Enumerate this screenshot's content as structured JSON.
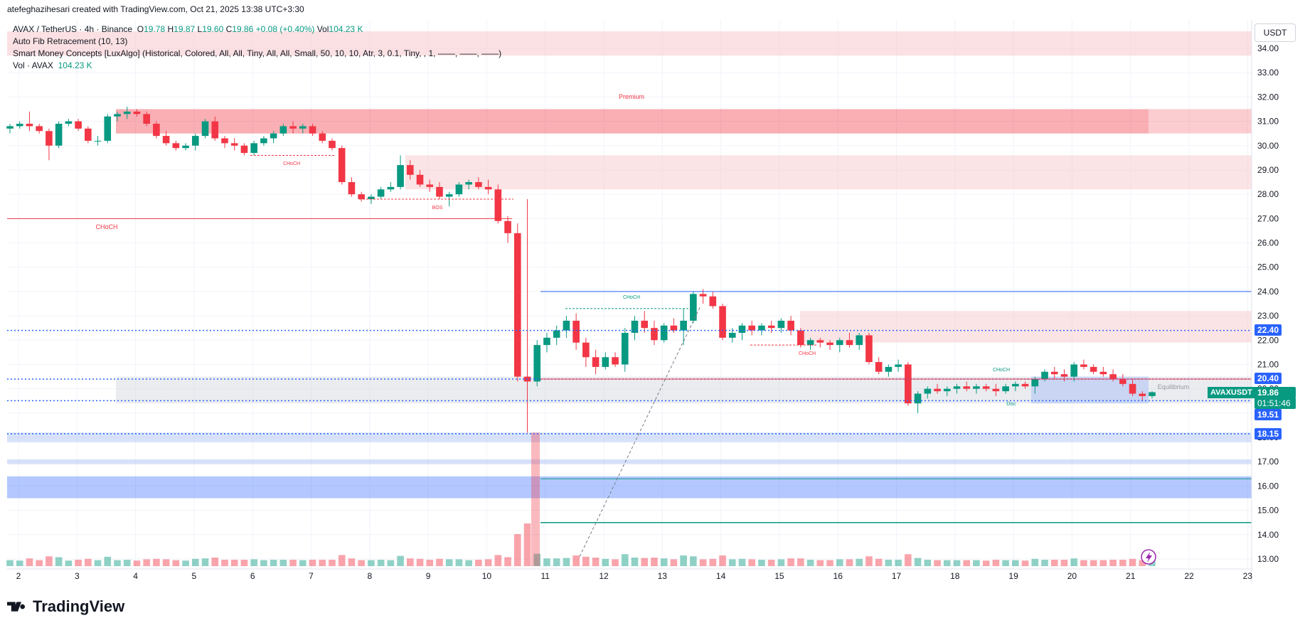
{
  "header": {
    "created_text": "atefeghazihesari created with TradingView.com, Oct 21, 2025 13:38 UTC+3:30"
  },
  "legend": {
    "symbol": "AVAX / TetherUS · 4h · Binance",
    "o_label": "O",
    "o_val": "19.78",
    "h_label": "H",
    "h_val": "19.87",
    "l_label": "L",
    "l_val": "19.60",
    "c_label": "C",
    "c_val": "19.86",
    "change": "+0.08 (+0.40%)",
    "vol_label": "Vol",
    "vol_val": "104.23 K",
    "fib": "Auto Fib Retracement (10, 13)",
    "smc": "Smart Money Concepts [LuxAlgo] (Historical, Colored, All, All, Tiny, All, All, Small, 50, 10, 10, Atr, 3, 0.1, Tiny, , 1, ——, ——, ——)",
    "vol_ind_label": "Vol · AVAX",
    "vol_ind_val": "104.23 K"
  },
  "currency": "USDT",
  "symbol_tag": "AVAXUSDT",
  "price_tags": {
    "last_price": "19.86",
    "countdown": "01:51:46",
    "p1": "22.40",
    "p2": "20.40",
    "p3": "19.51",
    "p4": "18.15"
  },
  "annotations": {
    "premium": "Premium",
    "equilibrium": "Equilibrium",
    "choch": "CHoCH",
    "bos": "BOS",
    "discount": "Disc"
  },
  "footer": {
    "brand": "TradingView"
  },
  "colors": {
    "up": "#089981",
    "down": "#f23645",
    "premium_zone": "#f7c9cc",
    "discount_zone": "#b2c6f5",
    "fib_blue": "#2962ff",
    "grid": "#f0f3fa"
  },
  "chart_data": {
    "type": "candlestick",
    "title": "AVAX / TetherUS · 4h · Binance",
    "y_axis": {
      "ticks": [
        "34.00",
        "33.00",
        "32.00",
        "31.00",
        "30.00",
        "29.00",
        "28.00",
        "27.00",
        "26.00",
        "25.00",
        "24.00",
        "23.00",
        "22.00",
        "21.00",
        "20.00",
        "19.00",
        "18.00",
        "17.00",
        "16.00",
        "15.00",
        "14.00",
        "13.00"
      ],
      "range": [
        12.7,
        34.9
      ]
    },
    "x_axis": {
      "ticks": [
        "2",
        "3",
        "4",
        "5",
        "6",
        "7",
        "8",
        "9",
        "10",
        "11",
        "12",
        "13",
        "14",
        "15",
        "16",
        "17",
        "18",
        "19",
        "20",
        "21",
        "22",
        "23"
      ]
    },
    "candles": [
      [
        30.7,
        30.9,
        30.5,
        30.8
      ],
      [
        30.8,
        31.0,
        30.7,
        30.9
      ],
      [
        30.9,
        31.4,
        30.6,
        30.8
      ],
      [
        30.8,
        30.9,
        30.5,
        30.6
      ],
      [
        30.6,
        30.7,
        29.4,
        30.0
      ],
      [
        30.0,
        31.0,
        29.9,
        30.9
      ],
      [
        30.9,
        31.1,
        30.8,
        31.0
      ],
      [
        31.0,
        31.1,
        30.6,
        30.7
      ],
      [
        30.7,
        30.8,
        30.1,
        30.2
      ],
      [
        30.2,
        30.4,
        30.0,
        30.2
      ],
      [
        30.2,
        31.3,
        30.1,
        31.2
      ],
      [
        31.2,
        31.4,
        31.0,
        31.3
      ],
      [
        31.3,
        31.6,
        31.1,
        31.4
      ],
      [
        31.4,
        31.5,
        31.2,
        31.3
      ],
      [
        31.3,
        31.4,
        30.8,
        30.9
      ],
      [
        30.9,
        31.0,
        30.3,
        30.4
      ],
      [
        30.4,
        30.6,
        30.0,
        30.1
      ],
      [
        30.1,
        30.2,
        29.8,
        29.9
      ],
      [
        29.9,
        30.1,
        29.8,
        30.0
      ],
      [
        30.0,
        30.5,
        29.8,
        30.4
      ],
      [
        30.4,
        31.1,
        30.3,
        31.0
      ],
      [
        31.0,
        31.2,
        30.2,
        30.3
      ],
      [
        30.3,
        30.4,
        29.9,
        30.1
      ],
      [
        30.1,
        30.3,
        29.8,
        30.0
      ],
      [
        30.0,
        30.1,
        29.6,
        29.7
      ],
      [
        29.7,
        30.2,
        29.6,
        30.1
      ],
      [
        30.1,
        30.4,
        30.0,
        30.3
      ],
      [
        30.3,
        30.6,
        30.1,
        30.5
      ],
      [
        30.5,
        30.9,
        30.4,
        30.8
      ],
      [
        30.8,
        31.0,
        30.5,
        30.7
      ],
      [
        30.7,
        30.9,
        30.5,
        30.8
      ],
      [
        30.8,
        30.9,
        30.4,
        30.5
      ],
      [
        30.5,
        30.6,
        30.1,
        30.2
      ],
      [
        30.2,
        30.3,
        29.8,
        29.9
      ],
      [
        29.9,
        30.0,
        28.4,
        28.5
      ],
      [
        28.5,
        28.7,
        27.9,
        28.0
      ],
      [
        28.0,
        28.1,
        27.7,
        27.8
      ],
      [
        27.8,
        28.0,
        27.6,
        27.9
      ],
      [
        27.9,
        28.3,
        27.8,
        28.2
      ],
      [
        28.2,
        28.5,
        28.1,
        28.3
      ],
      [
        28.3,
        29.6,
        28.2,
        29.2
      ],
      [
        29.2,
        29.4,
        28.6,
        28.8
      ],
      [
        28.8,
        29.0,
        28.3,
        28.4
      ],
      [
        28.4,
        28.6,
        28.1,
        28.3
      ],
      [
        28.3,
        28.5,
        27.8,
        27.9
      ],
      [
        27.9,
        28.1,
        27.5,
        28.0
      ],
      [
        28.0,
        28.5,
        27.9,
        28.4
      ],
      [
        28.4,
        28.6,
        28.2,
        28.5
      ],
      [
        28.5,
        28.7,
        28.2,
        28.3
      ],
      [
        28.3,
        28.6,
        28.0,
        28.2
      ],
      [
        28.2,
        28.4,
        26.8,
        26.9
      ],
      [
        26.9,
        27.1,
        26.0,
        26.4
      ],
      [
        26.4,
        26.8,
        20.3,
        20.5
      ],
      [
        20.5,
        27.8,
        18.2,
        20.3
      ],
      [
        20.3,
        22.0,
        20.1,
        21.8
      ],
      [
        21.8,
        22.3,
        21.5,
        22.1
      ],
      [
        22.1,
        22.6,
        21.8,
        22.4
      ],
      [
        22.4,
        23.0,
        22.1,
        22.8
      ],
      [
        22.8,
        23.1,
        21.6,
        21.9
      ],
      [
        21.9,
        22.1,
        20.9,
        21.3
      ],
      [
        21.3,
        21.6,
        20.6,
        20.9
      ],
      [
        20.9,
        21.5,
        20.8,
        21.3
      ],
      [
        21.3,
        21.5,
        20.9,
        21.0
      ],
      [
        21.0,
        22.5,
        20.7,
        22.3
      ],
      [
        22.3,
        23.0,
        22.0,
        22.8
      ],
      [
        22.8,
        23.2,
        22.3,
        22.5
      ],
      [
        22.5,
        22.8,
        21.8,
        22.0
      ],
      [
        22.0,
        22.7,
        21.9,
        22.6
      ],
      [
        22.6,
        22.9,
        22.3,
        22.4
      ],
      [
        22.4,
        23.3,
        21.8,
        22.8
      ],
      [
        22.8,
        24.0,
        22.7,
        23.9
      ],
      [
        23.9,
        24.1,
        23.5,
        23.8
      ],
      [
        23.8,
        24.0,
        23.3,
        23.4
      ],
      [
        23.4,
        23.5,
        22.0,
        22.1
      ],
      [
        22.1,
        22.5,
        21.9,
        22.3
      ],
      [
        22.3,
        22.7,
        22.0,
        22.6
      ],
      [
        22.6,
        22.8,
        22.2,
        22.4
      ],
      [
        22.4,
        22.7,
        22.2,
        22.6
      ],
      [
        22.6,
        22.8,
        22.3,
        22.5
      ],
      [
        22.5,
        22.9,
        22.3,
        22.8
      ],
      [
        22.8,
        23.0,
        22.2,
        22.4
      ],
      [
        22.4,
        22.5,
        21.7,
        21.8
      ],
      [
        21.8,
        22.1,
        21.6,
        22.0
      ],
      [
        22.0,
        22.1,
        21.7,
        21.9
      ],
      [
        21.9,
        22.0,
        21.6,
        21.8
      ],
      [
        21.8,
        22.1,
        21.5,
        22.0
      ],
      [
        22.0,
        22.3,
        21.7,
        21.8
      ],
      [
        21.8,
        22.3,
        21.6,
        22.2
      ],
      [
        22.2,
        22.3,
        21.0,
        21.1
      ],
      [
        21.1,
        21.3,
        20.6,
        20.7
      ],
      [
        20.7,
        21.0,
        20.5,
        20.9
      ],
      [
        20.9,
        21.2,
        20.7,
        21.0
      ],
      [
        21.0,
        21.1,
        19.3,
        19.4
      ],
      [
        19.4,
        19.9,
        19.0,
        19.8
      ],
      [
        19.8,
        20.1,
        19.6,
        20.0
      ],
      [
        20.0,
        20.2,
        19.8,
        19.9
      ],
      [
        19.9,
        20.1,
        19.7,
        20.0
      ],
      [
        20.0,
        20.2,
        19.8,
        20.1
      ],
      [
        20.1,
        20.3,
        19.9,
        20.0
      ],
      [
        20.0,
        20.2,
        19.8,
        20.1
      ],
      [
        20.1,
        20.2,
        19.9,
        20.0
      ],
      [
        20.0,
        20.2,
        19.7,
        19.9
      ],
      [
        19.9,
        20.2,
        19.8,
        20.1
      ],
      [
        20.1,
        20.3,
        19.9,
        20.2
      ],
      [
        20.2,
        20.3,
        20.0,
        20.1
      ],
      [
        20.1,
        20.5,
        19.8,
        20.4
      ],
      [
        20.4,
        20.8,
        20.3,
        20.7
      ],
      [
        20.7,
        20.9,
        20.4,
        20.6
      ],
      [
        20.6,
        20.8,
        20.3,
        20.5
      ],
      [
        20.5,
        21.1,
        20.3,
        21.0
      ],
      [
        21.0,
        21.2,
        20.8,
        20.9
      ],
      [
        20.9,
        21.0,
        20.6,
        20.7
      ],
      [
        20.7,
        20.9,
        20.5,
        20.6
      ],
      [
        20.6,
        20.8,
        20.3,
        20.4
      ],
      [
        20.4,
        20.6,
        20.1,
        20.2
      ],
      [
        20.2,
        20.4,
        19.7,
        19.8
      ],
      [
        19.8,
        19.9,
        19.5,
        19.7
      ],
      [
        19.7,
        19.9,
        19.6,
        19.86
      ]
    ],
    "volume_note": "Vol · AVAX 104.23 K"
  }
}
